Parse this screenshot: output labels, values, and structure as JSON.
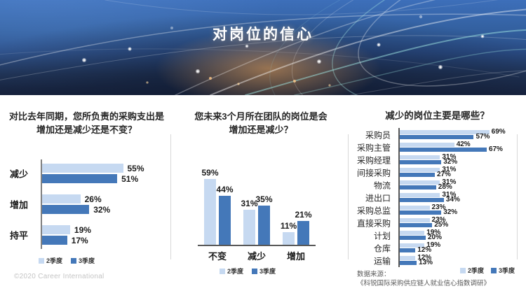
{
  "header": {
    "title": "对岗位的信心"
  },
  "colors": {
    "q2": "#C6D9F1",
    "q3": "#4478B9"
  },
  "footer": {
    "copyright": "©2020 Career International",
    "source_label": "数据来源：",
    "source_title": "《科锐国际采购供应链人就业信心指数调研》"
  },
  "chart_data": [
    {
      "type": "bar",
      "orientation": "horizontal",
      "title": "对比去年同期，您所负责的采购支出是增加还是减少还是不变？",
      "title_lines": [
        "对比去年同期，您所负责的采购支出是",
        "增加还是减少还是不变？"
      ],
      "categories": [
        "减少",
        "增加",
        "持平"
      ],
      "series": [
        {
          "name": "2季度",
          "values": [
            55,
            26,
            19
          ]
        },
        {
          "name": "3季度",
          "values": [
            51,
            32,
            17
          ]
        }
      ],
      "unit": "%",
      "xlim": [
        0,
        60
      ],
      "grid": false,
      "legend_position": "bottom"
    },
    {
      "type": "bar",
      "orientation": "vertical",
      "title": "您未来3个月所在团队的岗位是会增加还是减少？",
      "title_lines": [
        "您未来3个月所在团队的岗位是会",
        "增加还是减少？"
      ],
      "categories": [
        "不变",
        "减少",
        "增加"
      ],
      "series": [
        {
          "name": "2季度",
          "values": [
            59,
            31,
            11
          ]
        },
        {
          "name": "3季度",
          "values": [
            44,
            35,
            21
          ]
        }
      ],
      "unit": "%",
      "ylim": [
        0,
        65
      ],
      "grid": false,
      "legend_position": "bottom"
    },
    {
      "type": "bar",
      "orientation": "horizontal",
      "title": "减少的岗位主要是哪些？",
      "categories": [
        "采购员",
        "采购主管",
        "采购经理",
        "间接采购",
        "物流",
        "进出口",
        "采购总监",
        "直接采购",
        "计划",
        "仓库",
        "运输"
      ],
      "series": [
        {
          "name": "2季度",
          "values": [
            69,
            42,
            31,
            31,
            31,
            31,
            23,
            23,
            19,
            19,
            12
          ]
        },
        {
          "name": "3季度",
          "values": [
            57,
            67,
            32,
            27,
            28,
            34,
            32,
            25,
            20,
            12,
            13
          ]
        }
      ],
      "unit": "%",
      "xlim": [
        0,
        75
      ],
      "grid": false,
      "legend_position": "bottom-right"
    }
  ]
}
